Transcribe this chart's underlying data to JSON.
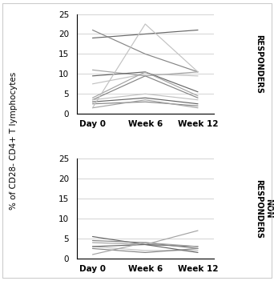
{
  "responders_lines": [
    [
      19.0,
      20.0,
      21.0
    ],
    [
      21.0,
      15.0,
      10.5
    ],
    [
      11.0,
      9.5,
      10.5
    ],
    [
      7.5,
      10.0,
      9.5
    ],
    [
      9.5,
      10.5,
      5.5
    ],
    [
      3.5,
      9.5,
      4.0
    ],
    [
      4.0,
      10.5,
      4.5
    ],
    [
      3.5,
      5.0,
      3.5
    ],
    [
      3.0,
      4.0,
      2.5
    ],
    [
      2.5,
      3.0,
      2.0
    ],
    [
      1.5,
      3.5,
      1.5
    ],
    [
      1.5,
      22.5,
      10.5
    ]
  ],
  "non_responders_lines": [
    [
      5.5,
      3.5,
      3.0
    ],
    [
      4.5,
      4.0,
      2.5
    ],
    [
      4.0,
      3.5,
      7.0
    ],
    [
      3.0,
      2.0,
      2.0
    ],
    [
      3.0,
      3.5,
      1.5
    ],
    [
      2.5,
      1.5,
      2.5
    ],
    [
      1.0,
      4.0,
      3.0
    ]
  ],
  "x_labels": [
    "Day 0",
    "Week 6",
    "Week 12"
  ],
  "ylim": [
    0,
    25
  ],
  "yticks": [
    0,
    5,
    10,
    15,
    20,
    25
  ],
  "ylabel": "% of CD28- CD4+ T lymphocytes",
  "right_label_top": "RESPONDERS",
  "right_label_bottom": "NON\nRESPONDERS",
  "line_color": "#888888",
  "bg_color": "#ffffff",
  "grid_color": "#cccccc",
  "border_color": "#cccccc"
}
